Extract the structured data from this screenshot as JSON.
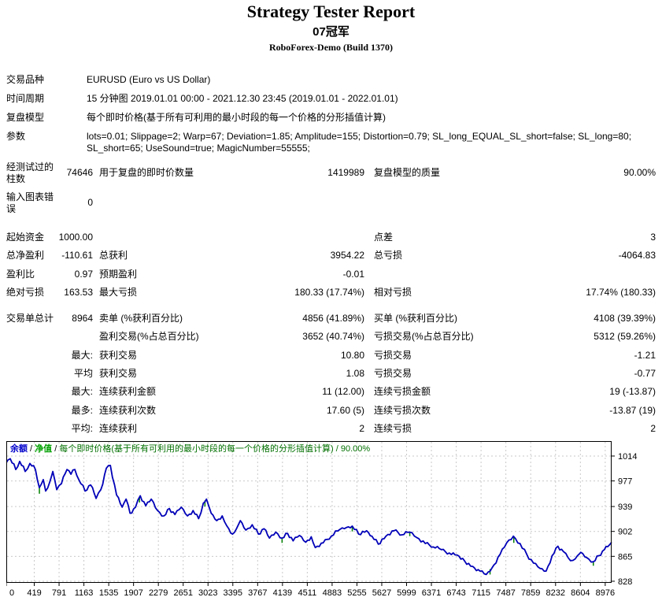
{
  "report": {
    "title": "Strategy Tester Report",
    "subtitle": "07冠军",
    "server": "RoboForex-Demo (Build 1370)"
  },
  "info_rows": [
    {
      "label": "交易品种",
      "value": "EURUSD (Euro vs US Dollar)"
    },
    {
      "label": "时间周期",
      "value": "15 分钟图 2019.01.01 00:00 - 2021.12.30 23:45 (2019.01.01 - 2022.01.01)"
    },
    {
      "label": "复盘模型",
      "value": "每个即时价格(基于所有可利用的最小时段的每一个价格的分形插值计算)"
    },
    {
      "label": "参数",
      "value": "lots=0.01; Slippage=2; Warp=67; Deviation=1.85; Amplitude=155; Distortion=0.79; SL_long_EQUAL_SL_short=false; SL_long=80; SL_short=65; UseSound=true; MagicNumber=55555;"
    }
  ],
  "stat_rows": [
    {
      "tall": true,
      "c1": "经测试过的柱数",
      "c2": "74646",
      "c3": "用于复盘的即时价数量",
      "c4": "1419989",
      "c5": "复盘模型的质量",
      "c6": "90.00%"
    },
    {
      "tall": true,
      "c1": "输入图表错误",
      "c2": "0",
      "c3": "",
      "c4": "",
      "c5": "",
      "c6": ""
    },
    {
      "spacer": 13
    },
    {
      "c1": "起始资金",
      "c2": "1000.00",
      "c3": "",
      "c4": "",
      "c5": "点差",
      "c6": "3"
    },
    {
      "c1": "总净盈利",
      "c2": "-110.61",
      "c3": "总获利",
      "c4": "3954.22",
      "c5": "总亏损",
      "c6": "-4064.83"
    },
    {
      "c1": "盈利比",
      "c2": "0.97",
      "c3": "预期盈利",
      "c4": "-0.01",
      "c5": "",
      "c6": ""
    },
    {
      "c1": "绝对亏损",
      "c2": "163.53",
      "c3": "最大亏损",
      "c4": "180.33 (17.74%)",
      "c5": "相对亏损",
      "c6": "17.74% (180.33)"
    },
    {
      "spacer": 10
    },
    {
      "tall": true,
      "c1": "交易单总计",
      "c2": "8964",
      "c3": "卖单 (%获利百分比)",
      "c4": "4856 (41.89%)",
      "c5": "买单 (%获利百分比)",
      "c6": "4108 (39.39%)"
    },
    {
      "c1": "",
      "c2": "",
      "c3": "盈利交易(%占总百分比)",
      "c4": "3652 (40.74%)",
      "c5": "亏损交易(%占总百分比)",
      "c6": "5312 (59.26%)"
    },
    {
      "c1": "",
      "c2": "最大:",
      "c3": "获利交易",
      "c4": "10.80",
      "c5": "亏损交易",
      "c6": "-1.21"
    },
    {
      "c1": "",
      "c2": "平均",
      "c3": "获利交易",
      "c4": "1.08",
      "c5": "亏损交易",
      "c6": "-0.77"
    },
    {
      "c1": "",
      "c2": "最大:",
      "c3": "连续获利金额",
      "c4": "11 (12.00)",
      "c5": "连续亏损金额",
      "c6": "19 (-13.87)"
    },
    {
      "c1": "",
      "c2": "最多:",
      "c3": "连续获利次数",
      "c4": "17.60 (5)",
      "c5": "连续亏损次数",
      "c6": "-13.87 (19)"
    },
    {
      "c1": "",
      "c2": "平均:",
      "c3": "连续获利",
      "c4": "2",
      "c5": "连续亏损",
      "c6": "2"
    }
  ],
  "chart_data": {
    "type": "line",
    "legend": {
      "balance_label": "余额",
      "equity_label": "净值",
      "model_label": "每个即时价格(基于所有可利用的最小时段的每一个价格的分形插值计算)",
      "quality": "90.00%",
      "separator": " / "
    },
    "xlabel": "",
    "ylabel": "",
    "x_ticks": [
      0,
      419,
      791,
      1163,
      1535,
      1907,
      2279,
      2651,
      3023,
      3395,
      3767,
      4139,
      4511,
      4883,
      5255,
      5627,
      5999,
      6371,
      6743,
      7115,
      7487,
      7859,
      8232,
      8604,
      8976
    ],
    "y_ticks": [
      1014,
      977,
      939,
      902,
      865,
      828
    ],
    "x_range": [
      0,
      9072
    ],
    "y_range": [
      825.6,
      1036.2
    ],
    "grid": true,
    "colors": {
      "balance": "#0000b8",
      "equity": "#008000",
      "grid": "#c9c9c9",
      "box": "#000000",
      "legend_balance": "#0000cc",
      "legend_equity": "#00a000",
      "legend_text": "#006f00"
    },
    "series": [
      {
        "name": "balance",
        "points": [
          [
            0,
            1004
          ],
          [
            24,
            1008
          ],
          [
            59,
            1010
          ],
          [
            142,
            994
          ],
          [
            201,
            1006
          ],
          [
            283,
            991
          ],
          [
            354,
            1003
          ],
          [
            437,
            994
          ],
          [
            496,
            967
          ],
          [
            555,
            979
          ],
          [
            590,
            962
          ],
          [
            650,
            975
          ],
          [
            697,
            991
          ],
          [
            756,
            964
          ],
          [
            827,
            973
          ],
          [
            909,
            994
          ],
          [
            968,
            987
          ],
          [
            1027,
            994
          ],
          [
            1086,
            979
          ],
          [
            1181,
            962
          ],
          [
            1264,
            971
          ],
          [
            1346,
            951
          ],
          [
            1417,
            964
          ],
          [
            1500,
            996
          ],
          [
            1559,
            1000
          ],
          [
            1653,
            956
          ],
          [
            1736,
            938
          ],
          [
            1795,
            950
          ],
          [
            1854,
            929
          ],
          [
            1937,
            938
          ],
          [
            2008,
            955
          ],
          [
            2090,
            940
          ],
          [
            2173,
            950
          ],
          [
            2267,
            933
          ],
          [
            2362,
            925
          ],
          [
            2444,
            936
          ],
          [
            2527,
            927
          ],
          [
            2622,
            938
          ],
          [
            2716,
            925
          ],
          [
            2799,
            933
          ],
          [
            2882,
            921
          ],
          [
            2953,
            944
          ],
          [
            3000,
            950
          ],
          [
            3071,
            929
          ],
          [
            3153,
            918
          ],
          [
            3236,
            925
          ],
          [
            3307,
            910
          ],
          [
            3390,
            898
          ],
          [
            3449,
            906
          ],
          [
            3507,
            918
          ],
          [
            3590,
            904
          ],
          [
            3685,
            912
          ],
          [
            3779,
            898
          ],
          [
            3862,
            906
          ],
          [
            3944,
            892
          ],
          [
            4039,
            901
          ],
          [
            4133,
            892
          ],
          [
            4216,
            899
          ],
          [
            4299,
            888
          ],
          [
            4393,
            896
          ],
          [
            4488,
            886
          ],
          [
            4570,
            894
          ],
          [
            4630,
            878
          ],
          [
            4750,
            885
          ],
          [
            4870,
            895
          ],
          [
            5000,
            905
          ],
          [
            5100,
            908
          ],
          [
            5185,
            910
          ],
          [
            5280,
            898
          ],
          [
            5400,
            903
          ],
          [
            5480,
            895
          ],
          [
            5575,
            883
          ],
          [
            5690,
            895
          ],
          [
            5811,
            903
          ],
          [
            5930,
            897
          ],
          [
            6047,
            901
          ],
          [
            6150,
            893
          ],
          [
            6280,
            884
          ],
          [
            6400,
            879
          ],
          [
            6520,
            875
          ],
          [
            6640,
            870
          ],
          [
            6756,
            867
          ],
          [
            6870,
            858
          ],
          [
            6990,
            850
          ],
          [
            7100,
            843
          ],
          [
            7193,
            838
          ],
          [
            7280,
            848
          ],
          [
            7400,
            868
          ],
          [
            7500,
            885
          ],
          [
            7600,
            895
          ],
          [
            7700,
            884
          ],
          [
            7800,
            868
          ],
          [
            7900,
            855
          ],
          [
            8000,
            847
          ],
          [
            8090,
            843
          ],
          [
            8180,
            866
          ],
          [
            8267,
            880
          ],
          [
            8350,
            872
          ],
          [
            8420,
            863
          ],
          [
            8491,
            859
          ],
          [
            8560,
            866
          ],
          [
            8609,
            871
          ],
          [
            8700,
            863
          ],
          [
            8798,
            857
          ],
          [
            8880,
            866
          ],
          [
            8963,
            875
          ],
          [
            9040,
            882
          ],
          [
            9072,
            886
          ]
        ]
      }
    ],
    "equity_ticks": [
      [
        496,
        967,
        9
      ],
      [
        1996,
        953,
        8
      ],
      [
        2977,
        948,
        9
      ],
      [
        4133,
        892,
        7
      ],
      [
        5185,
        910,
        8
      ],
      [
        6047,
        901,
        6
      ],
      [
        7250,
        846,
        8
      ],
      [
        7606,
        894,
        9
      ],
      [
        8798,
        857,
        6
      ]
    ]
  }
}
